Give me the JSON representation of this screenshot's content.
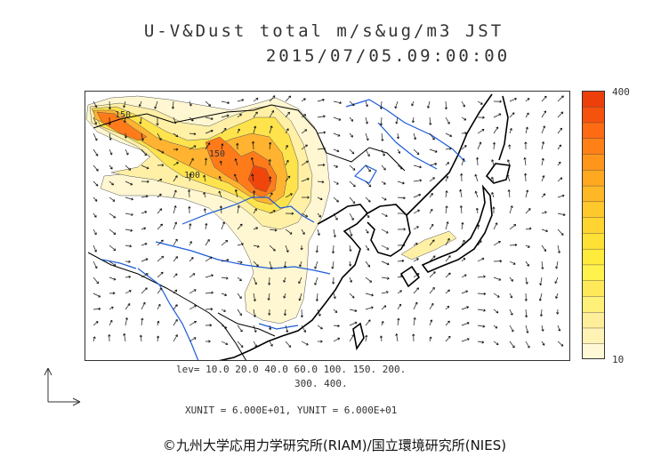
{
  "title": {
    "line1": "U-V&Dust total m/s&ug/m3 JST",
    "line2": "2015/07/05.09:00:00"
  },
  "colorbar": {
    "max_label": "400",
    "min_label": "10",
    "colors": [
      "#fff8d6",
      "#fff2b5",
      "#ffee99",
      "#fff07a",
      "#ffe85a",
      "#fff24d",
      "#ffeb3b",
      "#ffe135",
      "#ffd430",
      "#ffc82b",
      "#ffb825",
      "#ffa820",
      "#ff961b",
      "#ff8016",
      "#ff6b12",
      "#f5520e",
      "#ec3f0a"
    ]
  },
  "map": {
    "contour_labels": [
      "150",
      "150",
      "100"
    ],
    "colors": {
      "land_outline": "#000000",
      "river": "#1c5bd8",
      "border": "#000000",
      "wind_arrow": "#000000"
    }
  },
  "legend": {
    "levels_line1": "lev= 10.0 20.0 40.0 60.0 100. 150. 200.",
    "levels_line2": "300. 400.",
    "units": "XUNIT = 6.000E+01, YUNIT = 6.000E+01"
  },
  "footer": {
    "copyright": "©九州大学応用力学研究所(RIAM)/国立環境研究所(NIES)"
  },
  "icons": [
    "axes-icon"
  ]
}
